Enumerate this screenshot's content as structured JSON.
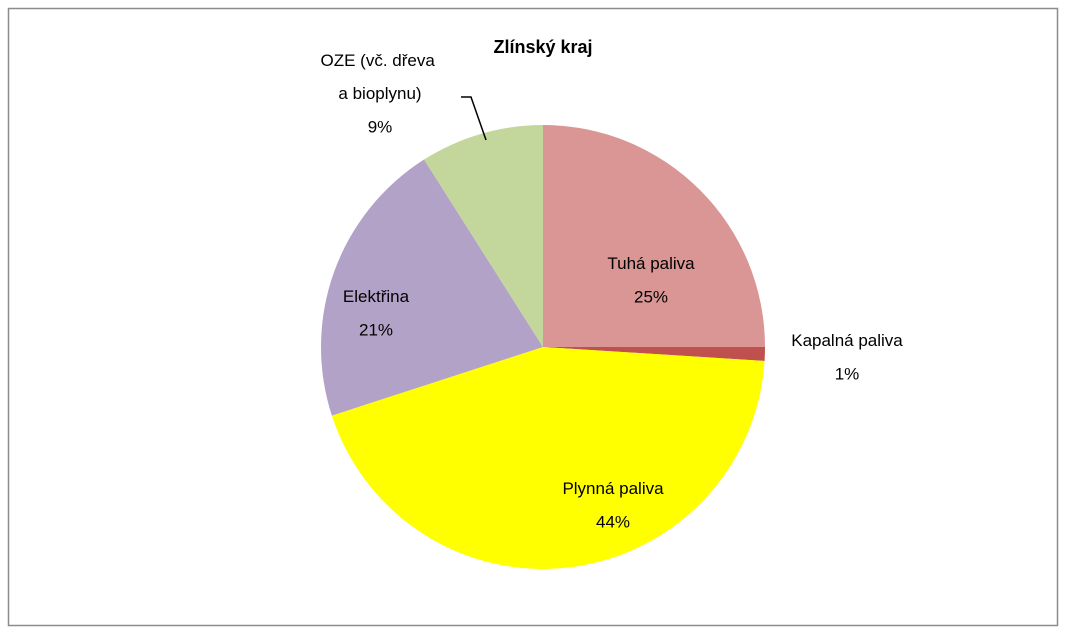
{
  "chart_data": {
    "type": "pie",
    "title": "Zlínský kraj",
    "categories": [
      "Tuhá paliva",
      "Kapalná paliva",
      "Plynná paliva",
      "Elektřina",
      "OZE (vč. dřeva a bioplynu)"
    ],
    "values": [
      25,
      1,
      44,
      21,
      9
    ],
    "value_labels": [
      "25%",
      "1%",
      "44%",
      "21%",
      "9%"
    ],
    "colors": [
      "#d99694",
      "#c0504d",
      "#ffff00",
      "#b3a2c7",
      "#c3d69b"
    ]
  }
}
